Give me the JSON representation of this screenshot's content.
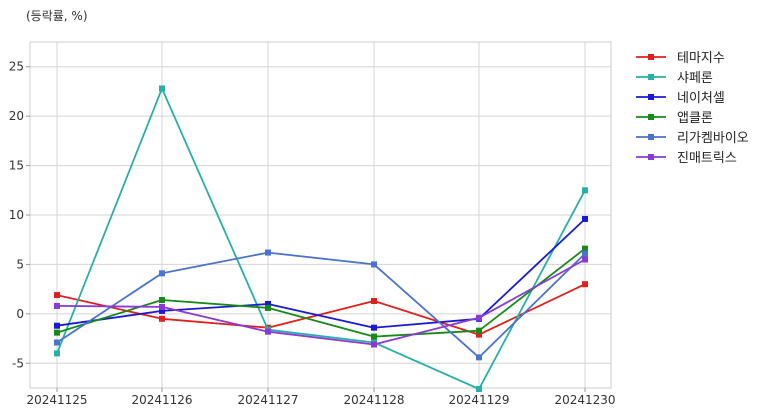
{
  "unit_label": "(등락률, %)",
  "chart_data": {
    "type": "line",
    "unit": "(등락률, %)",
    "categories": [
      "20241125",
      "20241126",
      "20241127",
      "20241128",
      "20241129",
      "20241230"
    ],
    "ylim": [
      -7.5,
      27.5
    ],
    "yticks": [
      -5,
      0,
      5,
      10,
      15,
      20,
      25
    ],
    "grid": true,
    "legend_position": "outside-right",
    "series": [
      {
        "name": "테마지수",
        "color": "#e0201c",
        "values": [
          1.9,
          -0.5,
          -1.4,
          1.3,
          -2.1,
          3.0
        ]
      },
      {
        "name": "샤페론",
        "color": "#26b0a8",
        "values": [
          -4.0,
          22.8,
          -1.6,
          -2.9,
          -7.6,
          12.5
        ]
      },
      {
        "name": "네이처셀",
        "color": "#1a1ad6",
        "values": [
          -1.2,
          0.3,
          1.0,
          -1.4,
          -0.5,
          9.6
        ]
      },
      {
        "name": "앱클론",
        "color": "#178a17",
        "values": [
          -1.9,
          1.4,
          0.6,
          -2.3,
          -1.7,
          6.6
        ]
      },
      {
        "name": "리가켐바이오",
        "color": "#4a72cf",
        "values": [
          -2.9,
          4.1,
          6.2,
          5.0,
          -4.4,
          6.1
        ]
      },
      {
        "name": "진매트릭스",
        "color": "#8a3ad6",
        "values": [
          0.8,
          0.7,
          -1.8,
          -3.1,
          -0.4,
          5.5
        ]
      }
    ]
  }
}
